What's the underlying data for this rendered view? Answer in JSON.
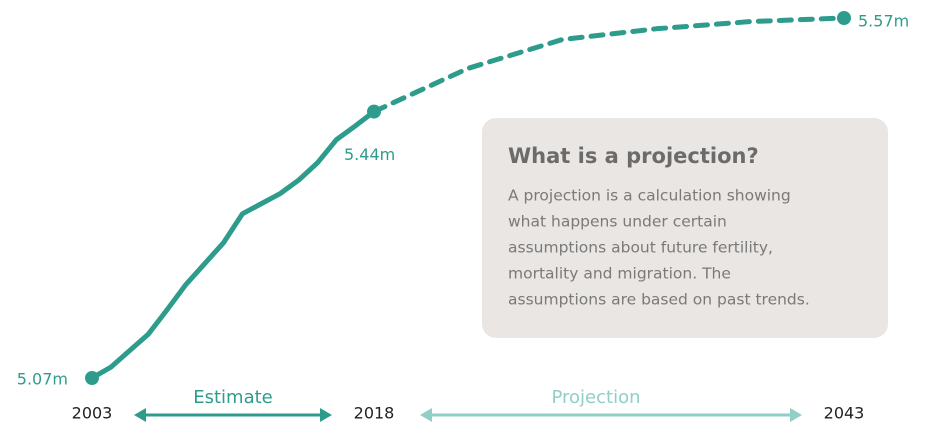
{
  "chart_data": {
    "type": "line",
    "series": [
      {
        "name": "Estimate",
        "color": "#2e9c8c",
        "style": "solid",
        "x": [
          2003,
          2004,
          2005,
          2006,
          2007,
          2008,
          2009,
          2010,
          2011,
          2012,
          2013,
          2014,
          2015,
          2016,
          2017,
          2018
        ],
        "values": [
          5.07,
          5.085,
          5.108,
          5.131,
          5.165,
          5.2,
          5.229,
          5.258,
          5.298,
          5.312,
          5.326,
          5.345,
          5.369,
          5.401,
          5.42,
          5.44
        ]
      },
      {
        "name": "Projection",
        "color": "#2e9c8c",
        "style": "dashed",
        "label_color": "#8fcfc5",
        "x": [
          2018,
          2023,
          2028,
          2033,
          2038,
          2043
        ],
        "values": [
          5.44,
          5.5,
          5.54,
          5.555,
          5.565,
          5.57
        ]
      }
    ],
    "point_labels": [
      {
        "x": 2003,
        "value": 5.07,
        "label": "5.07m"
      },
      {
        "x": 2018,
        "value": 5.44,
        "label": "5.44m"
      },
      {
        "x": 2043,
        "value": 5.57,
        "label": "5.57m"
      }
    ],
    "xlim": [
      2003,
      2043
    ],
    "xticks": [
      2003,
      2018,
      2043
    ],
    "ylim": [
      5.07,
      5.57
    ],
    "info_box": {
      "title": "What is a projection?",
      "lines": [
        "A projection is a calculation showing",
        "what happens under certain",
        "assumptions about future fertility,",
        "mortality and migration. The",
        "assumptions are based on past trends."
      ]
    }
  }
}
